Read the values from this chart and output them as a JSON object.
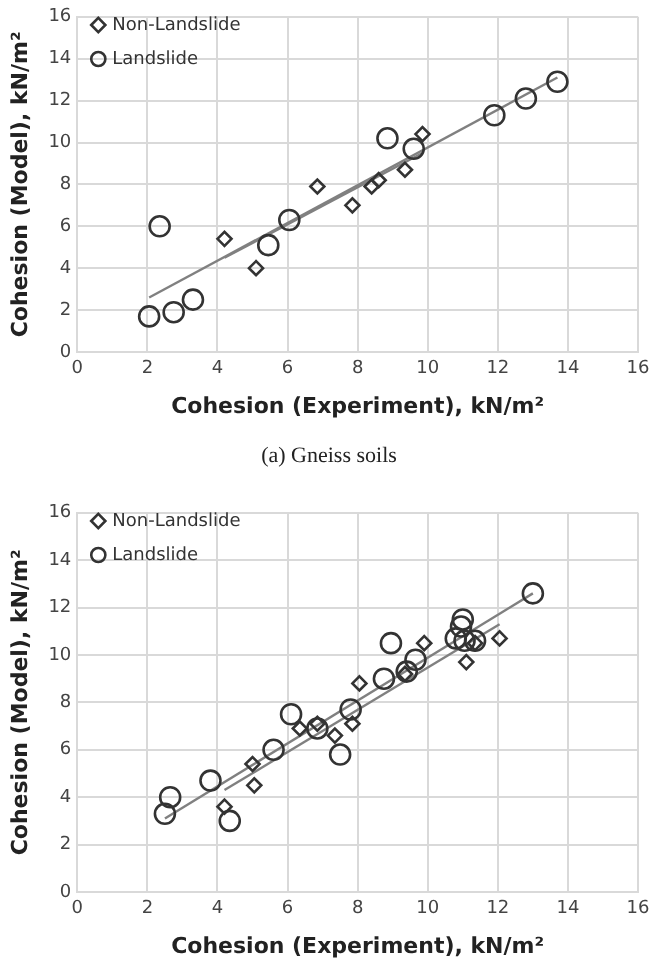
{
  "chart_data": [
    {
      "type": "scatter",
      "xlabel": "Cohesion (Experiment), kN/m²",
      "ylabel": "Cohesion (Model), kN/m²",
      "annotations": [
        "(a) Gneiss soils"
      ],
      "xlim": [
        0,
        16
      ],
      "ylim": [
        0,
        16
      ],
      "xticks": [
        0,
        2,
        4,
        6,
        8,
        10,
        12,
        14,
        16
      ],
      "yticks": [
        0,
        2,
        4,
        6,
        8,
        10,
        12,
        14,
        16
      ],
      "grid": true,
      "legend": "top left",
      "series": [
        {
          "name": "Landslide",
          "type": "scatter",
          "marker": "circle",
          "color": "#333333",
          "x": [
            2.05,
            2.35,
            2.75,
            3.3,
            5.45,
            6.05,
            8.85,
            9.6,
            11.9,
            12.8,
            13.7
          ],
          "values": [
            1.7,
            6.0,
            1.9,
            2.5,
            5.1,
            6.3,
            10.2,
            9.7,
            11.3,
            12.1,
            12.9
          ]
        },
        {
          "name": "Non-Landslide",
          "type": "scatter",
          "marker": "diamond",
          "color": "#333333",
          "x": [
            4.2,
            5.1,
            6.85,
            7.85,
            8.4,
            8.6,
            9.35,
            9.85
          ],
          "values": [
            5.4,
            4.0,
            7.9,
            7.0,
            7.9,
            8.2,
            8.7,
            10.4
          ]
        },
        {
          "type": "line",
          "marker": "none",
          "color": "#808080",
          "x": [
            2.05,
            13.7
          ],
          "values": [
            2.6,
            13.1
          ]
        },
        {
          "type": "line",
          "marker": "none",
          "color": "#808080",
          "x": [
            4.2,
            9.85
          ],
          "values": [
            4.5,
            9.5
          ]
        }
      ]
    },
    {
      "type": "scatter",
      "xlabel": "Cohesion (Experiment), kN/m²",
      "ylabel": "Cohesion (Model), kN/m²",
      "xlim": [
        0,
        16
      ],
      "ylim": [
        0,
        16
      ],
      "xticks": [
        0,
        2,
        4,
        6,
        8,
        10,
        12,
        14,
        16
      ],
      "yticks": [
        0,
        2,
        4,
        6,
        8,
        10,
        12,
        14,
        16
      ],
      "grid": true,
      "legend": "top left",
      "series": [
        {
          "name": "Landslide",
          "type": "scatter",
          "marker": "circle",
          "color": "#333333",
          "x": [
            2.5,
            2.65,
            3.8,
            4.35,
            5.6,
            6.1,
            6.85,
            7.5,
            7.8,
            8.75,
            8.95,
            9.4,
            9.65,
            10.8,
            10.95,
            11.0,
            11.05,
            11.35,
            13.0
          ],
          "values": [
            3.3,
            4.0,
            4.7,
            3.0,
            6.0,
            7.5,
            6.9,
            5.8,
            7.7,
            9.0,
            10.5,
            9.3,
            9.8,
            10.7,
            11.2,
            11.5,
            10.6,
            10.6,
            12.6
          ]
        },
        {
          "name": "Non-Landslide",
          "type": "scatter",
          "marker": "diamond",
          "color": "#333333",
          "x": [
            4.2,
            5.0,
            5.05,
            6.35,
            6.85,
            7.35,
            7.85,
            8.05,
            9.35,
            9.9,
            11.1,
            11.35,
            12.05
          ],
          "values": [
            3.6,
            5.4,
            4.5,
            6.9,
            7.1,
            6.6,
            7.1,
            8.8,
            9.2,
            10.5,
            9.7,
            10.5,
            10.7
          ]
        },
        {
          "type": "line",
          "marker": "none",
          "color": "#808080",
          "x": [
            2.5,
            13.0
          ],
          "values": [
            3.1,
            12.6
          ]
        },
        {
          "type": "line",
          "marker": "none",
          "color": "#808080",
          "x": [
            4.2,
            12.05
          ],
          "values": [
            4.3,
            11.3
          ]
        }
      ]
    }
  ]
}
